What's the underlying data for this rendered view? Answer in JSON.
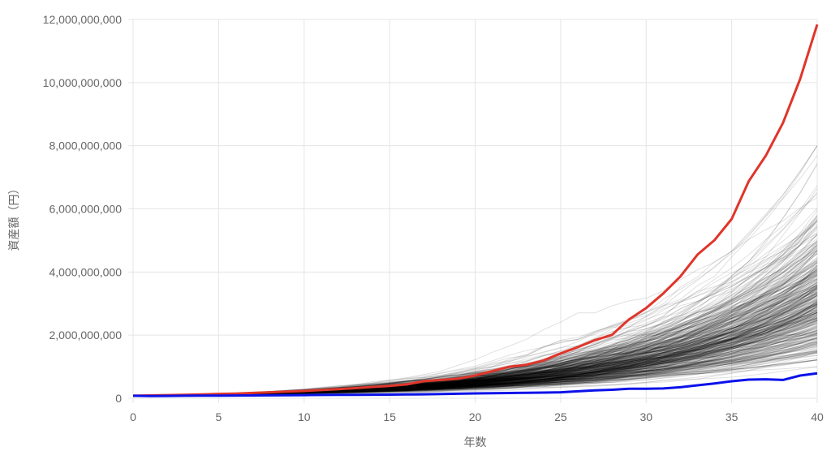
{
  "chart_data": {
    "type": "line",
    "xlabel": "年数",
    "ylabel": "資産額（円）",
    "xlim": [
      0,
      40
    ],
    "ylim": [
      0,
      12000000000
    ],
    "x_ticks": [
      0,
      5,
      10,
      15,
      20,
      25,
      30,
      35,
      40
    ],
    "y_ticks": [
      0,
      2000000000,
      4000000000,
      6000000000,
      8000000000,
      10000000000,
      12000000000
    ],
    "y_tick_labels": [
      "0",
      "2,000,000,000",
      "4,000,000,000",
      "6,000,000,000",
      "8,000,000,000",
      "10,000,000,000",
      "12,000,000,000"
    ],
    "x_tick_labels": [
      "0",
      "5",
      "10",
      "15",
      "20",
      "25",
      "30",
      "35",
      "40"
    ],
    "grid": true,
    "legend": "none",
    "simulation_paths": {
      "color": "#000000",
      "opacity": 0.12,
      "count": 400,
      "start_value": 80000000,
      "median_final": 3000000000,
      "max_final": 8000000000,
      "min_final": 1000000000
    },
    "series": [
      {
        "color": "#e0352b",
        "x": [
          0,
          1,
          2,
          3,
          4,
          5,
          6,
          7,
          8,
          9,
          10,
          11,
          12,
          13,
          14,
          15,
          16,
          17,
          18,
          19,
          20,
          21,
          22,
          23,
          24,
          25,
          26,
          27,
          28,
          29,
          30,
          31,
          32,
          33,
          34,
          35,
          36,
          37,
          38,
          39,
          40
        ],
        "values": [
          80000000,
          90000000,
          100000000,
          110000000,
          120000000,
          140000000,
          150000000,
          170000000,
          190000000,
          210000000,
          230000000,
          260000000,
          290000000,
          320000000,
          360000000,
          390000000,
          440000000,
          540000000,
          580000000,
          620000000,
          720000000,
          860000000,
          1000000000,
          1060000000,
          1200000000,
          1420000000,
          1620000000,
          1840000000,
          2010000000,
          2500000000,
          2860000000,
          3320000000,
          3860000000,
          4550000000,
          5010000000,
          5680000000,
          6880000000,
          7690000000,
          8720000000,
          10110000000,
          11840000000
        ]
      },
      {
        "color": "#0b12e8",
        "x": [
          0,
          1,
          2,
          3,
          4,
          5,
          6,
          7,
          8,
          9,
          10,
          11,
          12,
          13,
          14,
          15,
          16,
          17,
          18,
          19,
          20,
          21,
          22,
          23,
          24,
          25,
          26,
          27,
          28,
          29,
          30,
          31,
          32,
          33,
          34,
          35,
          36,
          37,
          38,
          39,
          40
        ],
        "values": [
          80000000,
          70000000,
          75000000,
          80000000,
          82000000,
          85000000,
          88000000,
          90000000,
          92000000,
          95000000,
          100000000,
          105000000,
          108000000,
          110000000,
          112000000,
          115000000,
          120000000,
          125000000,
          135000000,
          145000000,
          155000000,
          160000000,
          168000000,
          175000000,
          180000000,
          190000000,
          220000000,
          250000000,
          270000000,
          300000000,
          300000000,
          310000000,
          350000000,
          410000000,
          470000000,
          540000000,
          590000000,
          600000000,
          580000000,
          720000000,
          790000000
        ]
      }
    ]
  }
}
